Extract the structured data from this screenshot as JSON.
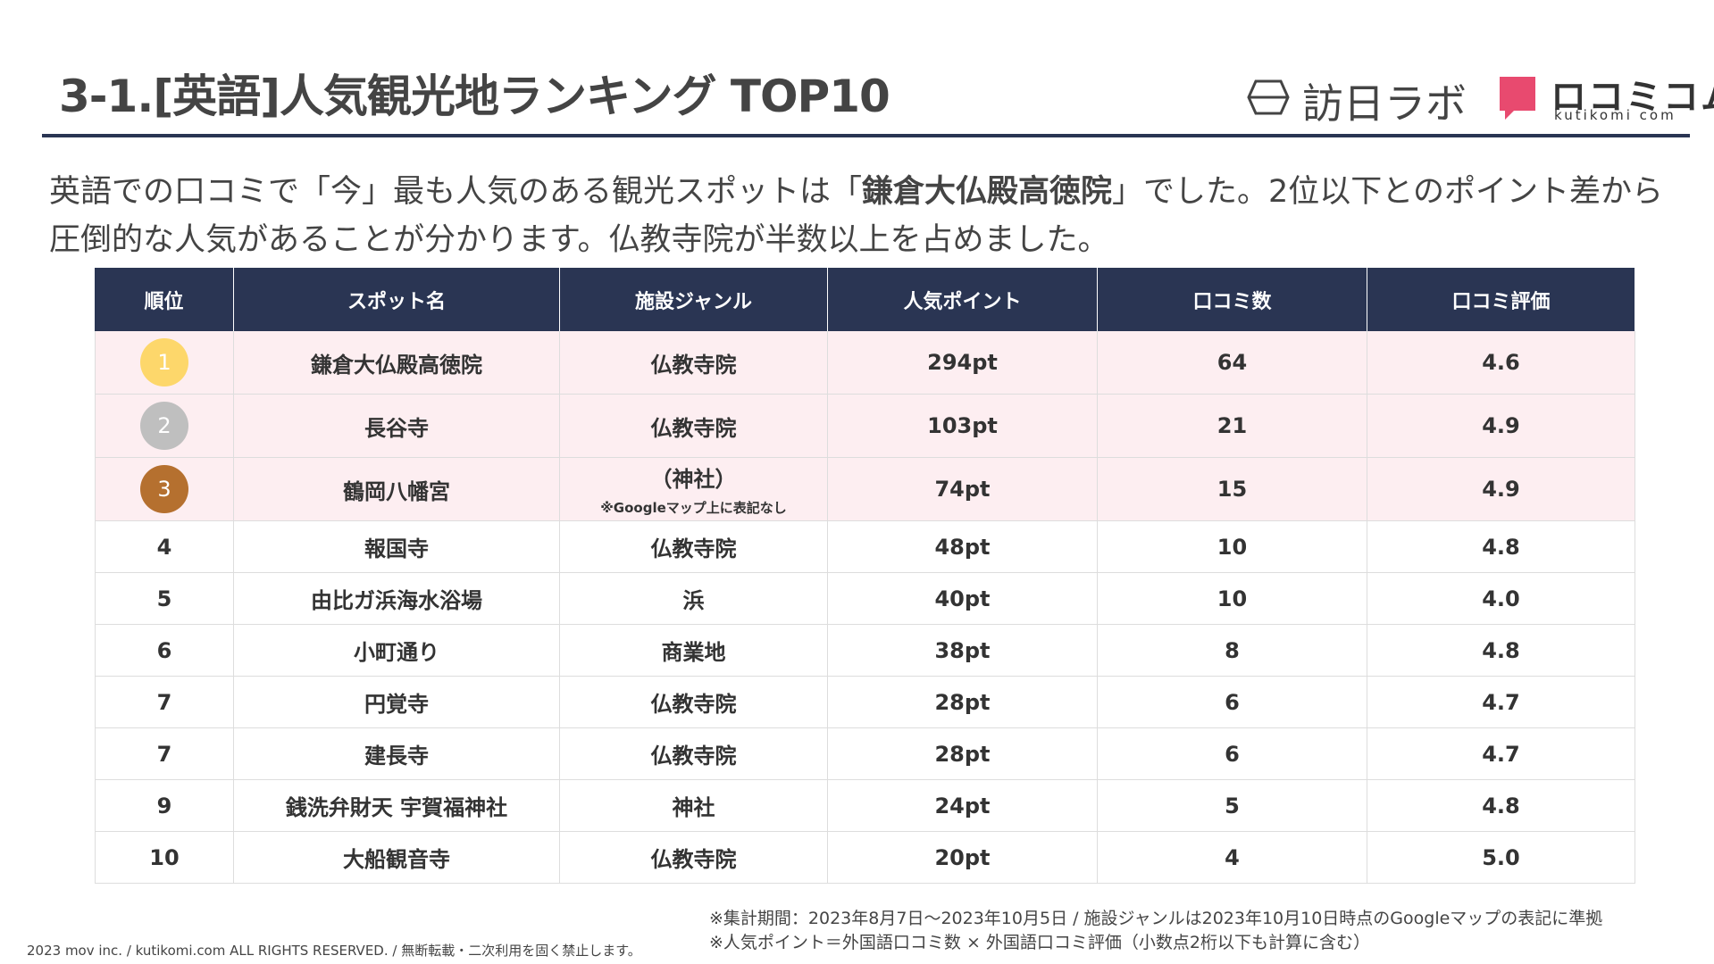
{
  "header": {
    "title": "3-1.[英語]人気観光地ランキング TOP10",
    "logo1": "訪日ラボ",
    "logo2": "ロコミコム",
    "logo2_sub": "kutikomi com"
  },
  "intro": {
    "part1": "英語での口コミで「今」最も人気のある観光スポットは「",
    "bold": "鎌倉大仏殿高徳院",
    "part2": "」でした。2位以下とのポイント差から",
    "part3": "圧倒的な人気があることが分かります。仏教寺院が半数以上を占めました。"
  },
  "table": {
    "headers": [
      "順位",
      "スポット名",
      "施設ジャンル",
      "人気ポイント",
      "口コミ数",
      "口コミ評価"
    ],
    "rows": [
      [
        "1",
        "鎌倉大仏殿高徳院",
        "仏教寺院",
        "294pt",
        "64",
        "4.6"
      ],
      [
        "2",
        "長谷寺",
        "仏教寺院",
        "103pt",
        "21",
        "4.9"
      ],
      [
        "3",
        "鶴岡八幡宮",
        "（神社）",
        "74pt",
        "15",
        "4.9"
      ],
      [
        "4",
        "報国寺",
        "仏教寺院",
        "48pt",
        "10",
        "4.8"
      ],
      [
        "5",
        "由比ガ浜海水浴場",
        "浜",
        "40pt",
        "10",
        "4.0"
      ],
      [
        "6",
        "小町通り",
        "商業地",
        "38pt",
        "8",
        "4.8"
      ],
      [
        "7",
        "円覚寺",
        "仏教寺院",
        "28pt",
        "6",
        "4.7"
      ],
      [
        "7",
        "建長寺",
        "仏教寺院",
        "28pt",
        "6",
        "4.7"
      ],
      [
        "9",
        "銭洗弁財天 宇賀福神社",
        "神社",
        "24pt",
        "5",
        "4.8"
      ],
      [
        "10",
        "大船観音寺",
        "仏教寺院",
        "20pt",
        "4",
        "5.0"
      ]
    ],
    "row_note": "※Googleマップ上に表記なし"
  },
  "footer": {
    "note1": "※集計期間：2023年8月7日～2023年10月5日 / 施設ジャンルは2023年10月10日時点のGoogleマップの表記に準拠",
    "note2": "※人気ポイント＝外国語口コミ数 × 外国語口コミ評価（小数点2桁以下も計算に含む）",
    "copyright": "2023 mov inc. / kutikomi.com ALL RIGHTS RESERVED. / 無断転載・二次利用を固く禁止します。"
  }
}
